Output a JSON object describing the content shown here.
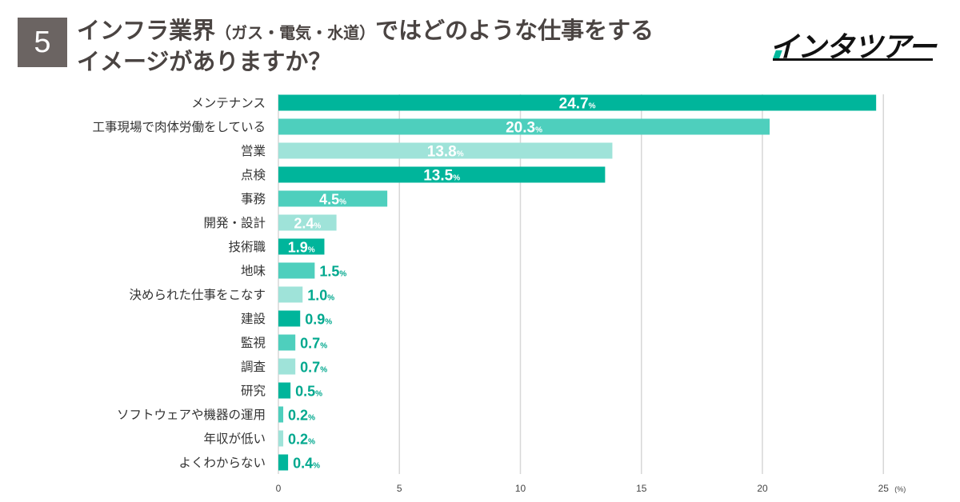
{
  "header": {
    "number": "5",
    "title_line1_a": "インフラ業界",
    "title_line1_b": "（ガス・電気・水道）",
    "title_line1_c": "ではどのような仕事をする",
    "title_line2": "イメージがありますか？",
    "logo": "インタツアー"
  },
  "colors": {
    "dark": "#00b59b",
    "mid": "#4ecfbd",
    "light": "#9fe3d9",
    "grid": "#d7d7d7",
    "label_outside": "#00a88e"
  },
  "chart_data": {
    "type": "bar",
    "orientation": "horizontal",
    "title": "インフラ業界（ガス・電気・水道）ではどのような仕事をするイメージがありますか？",
    "unit": "(%)",
    "value_suffix": "%",
    "xlim": [
      0,
      25
    ],
    "xticks": [
      "0",
      "5",
      "10",
      "15",
      "20",
      "25"
    ],
    "grid": true,
    "categories": [
      "メンテナンス",
      "工事現場で肉体労働をしている",
      "営業",
      "点検",
      "事務",
      "開発・設計",
      "技術職",
      "地味",
      "決められた仕事をこなす",
      "建設",
      "監視",
      "調査",
      "研究",
      "ソフトウェアや機器の運用",
      "年収が低い",
      "よくわからない"
    ],
    "values": [
      24.7,
      20.3,
      13.8,
      13.5,
      4.5,
      2.4,
      1.9,
      1.5,
      1.0,
      0.9,
      0.7,
      0.7,
      0.5,
      0.2,
      0.2,
      0.4
    ],
    "labels": [
      "24.7",
      "20.3",
      "13.8",
      "13.5",
      "4.5",
      "2.4",
      "1.9",
      "1.5",
      "1.0",
      "0.9",
      "0.7",
      "0.7",
      "0.5",
      "0.2",
      "0.2",
      "0.4"
    ],
    "shades": [
      "dark",
      "mid",
      "light",
      "dark",
      "mid",
      "light",
      "dark",
      "mid",
      "light",
      "dark",
      "mid",
      "light",
      "dark",
      "mid",
      "light",
      "dark"
    ]
  }
}
